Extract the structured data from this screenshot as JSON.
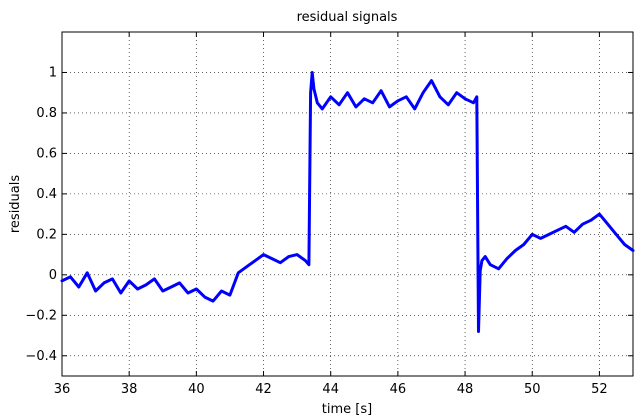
{
  "chart_data": {
    "type": "line",
    "title": "residual signals",
    "xlabel": "time [s]",
    "ylabel": "residuals",
    "xlim": [
      36,
      53
    ],
    "ylim": [
      -0.5,
      1.2
    ],
    "xticks": [
      36,
      38,
      40,
      42,
      44,
      46,
      48,
      50,
      52
    ],
    "yticks": [
      -0.4,
      -0.2,
      0,
      0.2,
      0.4,
      0.6,
      0.8,
      1
    ],
    "xtick_labels": [
      "36",
      "38",
      "40",
      "42",
      "44",
      "46",
      "48",
      "50",
      "52"
    ],
    "ytick_labels": [
      "−0.4",
      "−0.2",
      "0",
      "0.2",
      "0.4",
      "0.6",
      "0.8",
      "1"
    ],
    "grid": true,
    "series": [
      {
        "color": "#0000ff",
        "x": [
          36.0,
          36.25,
          36.5,
          36.75,
          37.0,
          37.25,
          37.5,
          37.75,
          38.0,
          38.25,
          38.5,
          38.75,
          39.0,
          39.25,
          39.5,
          39.75,
          40.0,
          40.25,
          40.5,
          40.75,
          41.0,
          41.25,
          41.5,
          41.75,
          42.0,
          42.25,
          42.5,
          42.75,
          43.0,
          43.25,
          43.35,
          43.4,
          43.45,
          43.5,
          43.6,
          43.75,
          44.0,
          44.25,
          44.5,
          44.75,
          45.0,
          45.25,
          45.5,
          45.75,
          46.0,
          46.25,
          46.5,
          46.75,
          47.0,
          47.25,
          47.5,
          47.75,
          48.0,
          48.25,
          48.35,
          48.4,
          48.45,
          48.5,
          48.6,
          48.75,
          49.0,
          49.25,
          49.5,
          49.75,
          50.0,
          50.25,
          50.5,
          50.75,
          51.0,
          51.25,
          51.5,
          51.75,
          52.0,
          52.25,
          52.5,
          52.75,
          53.0
        ],
        "y": [
          -0.03,
          -0.01,
          -0.06,
          0.01,
          -0.08,
          -0.04,
          -0.02,
          -0.09,
          -0.03,
          -0.07,
          -0.05,
          -0.02,
          -0.08,
          -0.06,
          -0.04,
          -0.09,
          -0.07,
          -0.11,
          -0.13,
          -0.08,
          -0.1,
          0.01,
          0.04,
          0.07,
          0.1,
          0.08,
          0.06,
          0.09,
          0.1,
          0.07,
          0.05,
          0.9,
          1.0,
          0.92,
          0.85,
          0.82,
          0.88,
          0.84,
          0.9,
          0.83,
          0.87,
          0.85,
          0.91,
          0.83,
          0.86,
          0.88,
          0.82,
          0.9,
          0.96,
          0.88,
          0.84,
          0.9,
          0.87,
          0.85,
          0.88,
          -0.28,
          0.02,
          0.07,
          0.09,
          0.05,
          0.03,
          0.08,
          0.12,
          0.15,
          0.2,
          0.18,
          0.2,
          0.22,
          0.24,
          0.21,
          0.25,
          0.27,
          0.3,
          0.25,
          0.2,
          0.15,
          0.12
        ]
      }
    ]
  }
}
